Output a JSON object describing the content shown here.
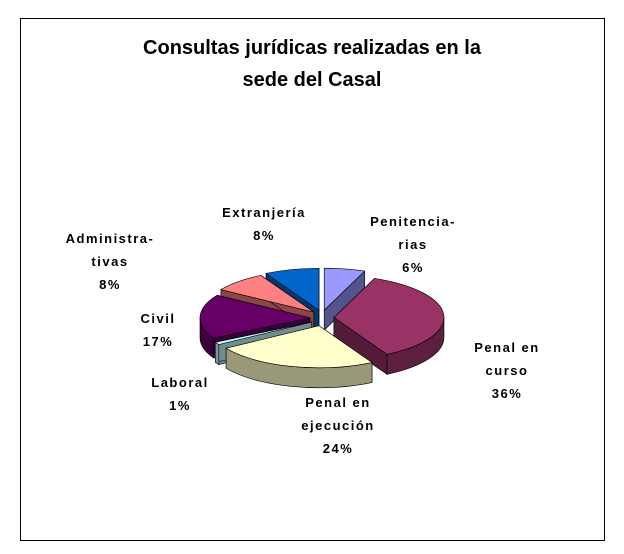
{
  "chart_data": {
    "type": "pie",
    "title": "Consultas jurídicas realizadas en la\nsede del Casal",
    "categories": [
      "Penitencia-\nrias",
      "Penal en\ncurso",
      "Penal en\nejecución",
      "Laboral",
      "Civil",
      "Administra-\ntivas",
      "Extranjería"
    ],
    "values": [
      6,
      36,
      24,
      1,
      17,
      8,
      8
    ],
    "value_labels": [
      "6%",
      "36%",
      "24%",
      "1%",
      "17%",
      "8%",
      "8%"
    ],
    "colors": [
      "#9999ff",
      "#993366",
      "#ffffcc",
      "#ccffff",
      "#660066",
      "#ff8080",
      "#0066cc"
    ]
  }
}
